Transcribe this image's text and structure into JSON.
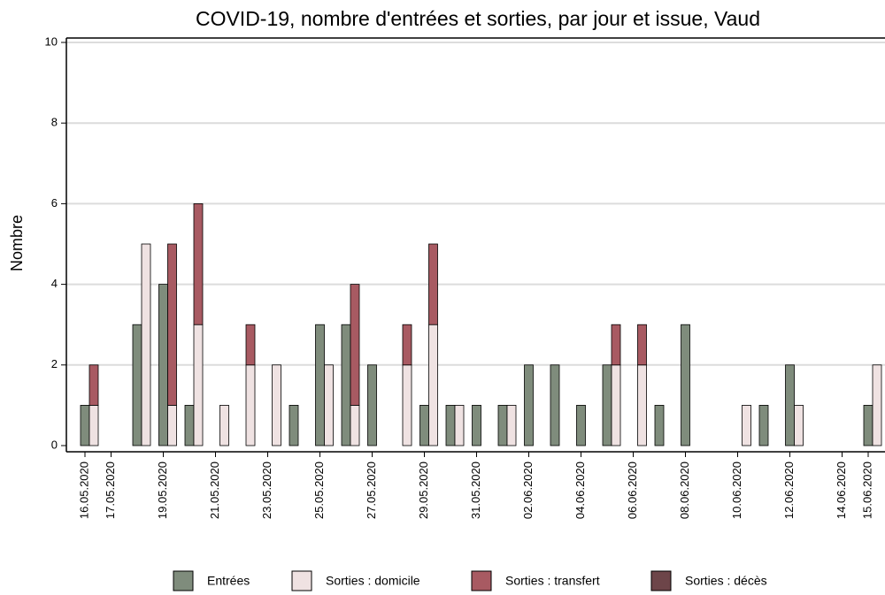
{
  "chart_data": {
    "type": "bar",
    "title": "COVID-19, nombre d'entrées et sorties, par jour et issue, Vaud",
    "y_label": "Nombre",
    "categories": [
      "16.05.2020",
      "17.05.2020",
      null,
      "19.05.2020",
      null,
      "21.05.2020",
      null,
      "23.05.2020",
      null,
      "25.05.2020",
      null,
      "27.05.2020",
      null,
      "29.05.2020",
      null,
      "31.05.2020",
      null,
      "02.06.2020",
      null,
      "04.06.2020",
      null,
      "06.06.2020",
      null,
      "08.06.2020",
      null,
      "10.06.2020",
      null,
      "12.06.2020",
      null,
      "14.06.2020",
      "15.06.2020"
    ],
    "series": [
      {
        "name": "Entrées",
        "color": "#7f8c7c",
        "values": [
          1,
          0,
          3,
          4,
          1,
          0,
          0,
          0,
          1,
          3,
          3,
          2,
          0,
          1,
          1,
          1,
          1,
          2,
          2,
          1,
          2,
          0,
          1,
          3,
          0,
          0,
          1,
          2,
          0,
          0,
          1
        ]
      },
      {
        "name": "Sorties : domicile",
        "color": "#efe2e2",
        "values": [
          1,
          0,
          5,
          1,
          3,
          1,
          2,
          2,
          0,
          2,
          1,
          0,
          2,
          3,
          1,
          0,
          1,
          0,
          0,
          0,
          2,
          2,
          0,
          0,
          0,
          1,
          0,
          1,
          0,
          0,
          2
        ]
      },
      {
        "name": "Sorties : transfert",
        "color": "#a85a62",
        "values": [
          1,
          0,
          0,
          4,
          3,
          0,
          1,
          0,
          0,
          0,
          3,
          0,
          1,
          2,
          0,
          0,
          0,
          0,
          0,
          0,
          1,
          1,
          0,
          0,
          0,
          0,
          0,
          0,
          0,
          0,
          0
        ]
      },
      {
        "name": "Sorties : décès",
        "color": "#6d4549",
        "values": [
          0,
          0,
          0,
          0,
          0,
          0,
          0,
          0,
          0,
          0,
          0,
          0,
          0,
          0,
          0,
          0,
          0,
          0,
          0,
          0,
          0,
          0,
          0,
          0,
          0,
          0,
          0,
          0,
          0,
          0,
          0
        ]
      }
    ],
    "ylim": [
      0,
      10
    ],
    "yticks": [
      0,
      2,
      4,
      6,
      8,
      10
    ],
    "grid": true
  }
}
